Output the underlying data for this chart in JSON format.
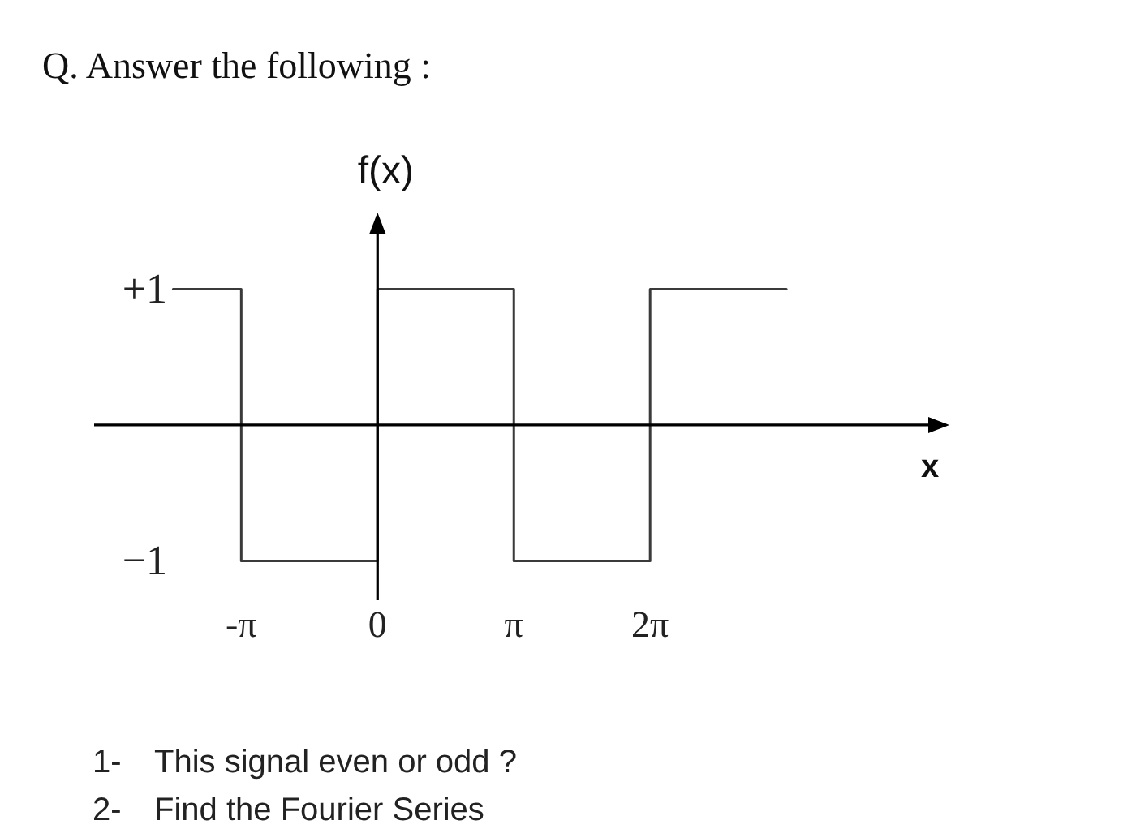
{
  "chart_data": {
    "type": "step",
    "title": "Q. Answer the following :",
    "xlabel": "x",
    "ylabel": "f(x)",
    "x": [
      -4.71,
      -3.14,
      0,
      3.14,
      6.28,
      9.42
    ],
    "values": [
      1,
      -1,
      1,
      -1,
      1,
      1
    ],
    "color": "#3a3a3a",
    "xlim": [
      -6.53,
      13.1
    ],
    "ylim": [
      -1.29,
      1.54
    ],
    "xticks": [
      {
        "value": -3.14,
        "label": "-π"
      },
      {
        "value": 0,
        "label": "0"
      },
      {
        "value": 3.14,
        "label": "π"
      },
      {
        "value": 6.28,
        "label": "2π"
      }
    ],
    "yticks": [
      {
        "value": 1,
        "label": "+1"
      },
      {
        "value": -1,
        "label": "−1"
      }
    ],
    "annotations": [
      "1- This signal even or odd ?",
      "2- Find the Fourier Series"
    ]
  }
}
